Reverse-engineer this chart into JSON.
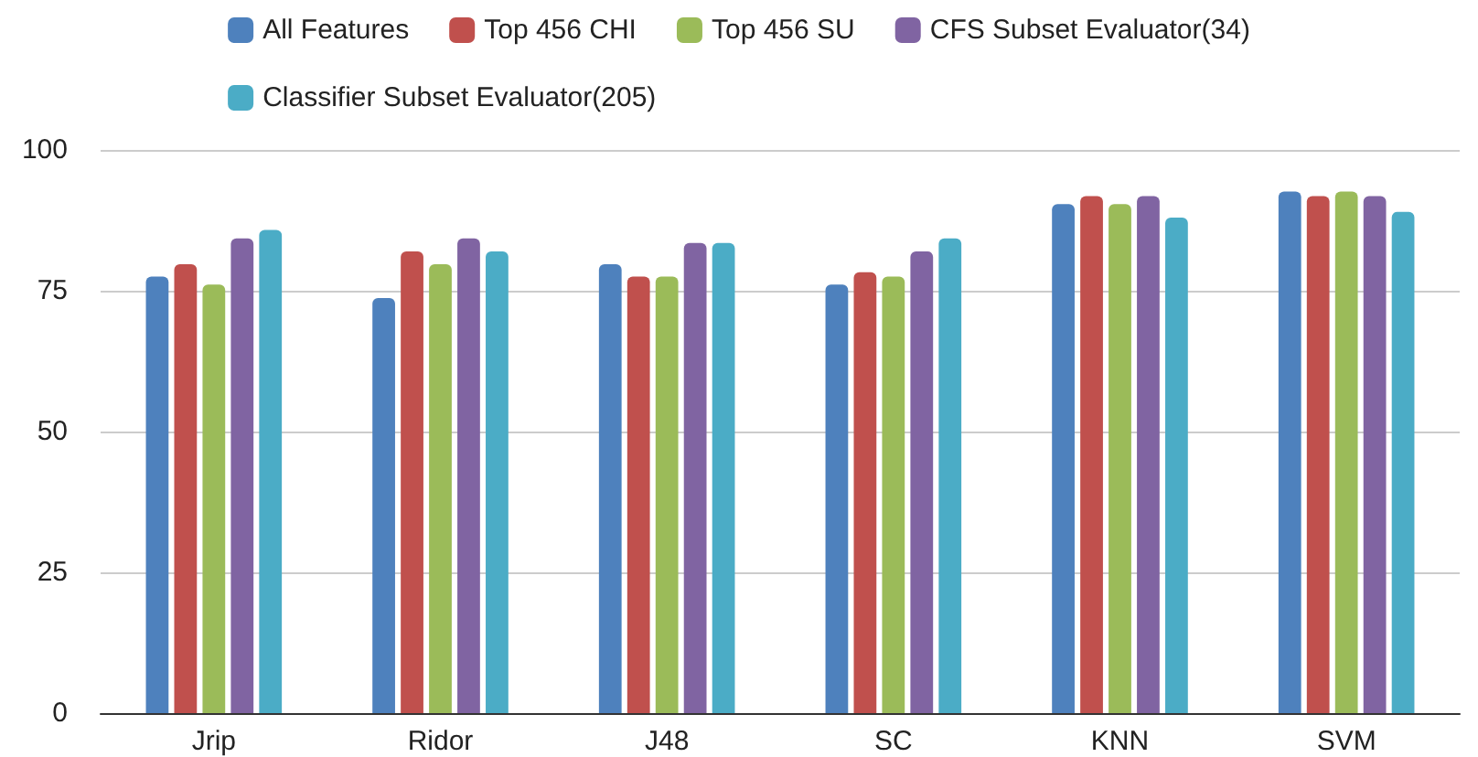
{
  "chart_data": {
    "type": "bar",
    "categories": [
      "Jrip",
      "Ridor",
      "J48",
      "SC",
      "KNN",
      "SVM"
    ],
    "series": [
      {
        "name": "All Features",
        "color": "#4e81bd",
        "values": [
          77.5,
          73.7,
          79.7,
          76.1,
          90.4,
          92.6
        ]
      },
      {
        "name": "Top 456 CHI",
        "color": "#c0504d",
        "values": [
          79.7,
          82.0,
          77.5,
          78.3,
          91.8,
          91.8
        ]
      },
      {
        "name": "Top 456 SU",
        "color": "#9bbb59",
        "values": [
          76.1,
          79.7,
          77.5,
          77.5,
          90.4,
          92.6
        ]
      },
      {
        "name": "CFS Subset Evaluator(34)",
        "color": "#8064a2",
        "values": [
          84.3,
          84.3,
          83.5,
          82.0,
          91.8,
          91.8
        ]
      },
      {
        "name": "Classifier Subset Evaluator(205)",
        "color": "#4bacc6",
        "values": [
          85.8,
          82.0,
          83.5,
          84.3,
          88.0,
          89.0
        ]
      }
    ],
    "ylim": [
      0,
      100
    ],
    "yticks": [
      0,
      25,
      50,
      75,
      100
    ],
    "grid": "y",
    "legend": "top"
  }
}
